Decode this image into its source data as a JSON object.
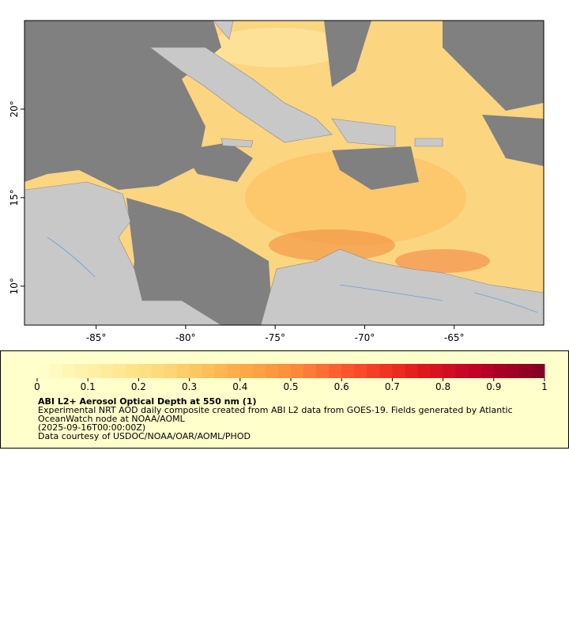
{
  "map": {
    "xlim": [
      -89,
      -60
    ],
    "ylim": [
      7.8,
      25
    ],
    "xticks": [
      {
        "value": -85,
        "label": "-85°"
      },
      {
        "value": -80,
        "label": "-80°"
      },
      {
        "value": -75,
        "label": "-75°"
      },
      {
        "value": -70,
        "label": "-70°"
      },
      {
        "value": -65,
        "label": "-65°"
      }
    ],
    "yticks": [
      {
        "value": 10,
        "label": "10°"
      },
      {
        "value": 15,
        "label": "15°"
      },
      {
        "value": 20,
        "label": "20°"
      }
    ]
  },
  "colorbar": {
    "range": [
      0,
      1
    ],
    "ticks": [
      0,
      0.1,
      0.2,
      0.3,
      0.4,
      0.5,
      0.6,
      0.7,
      0.8,
      0.9,
      1
    ],
    "colors": [
      "#ffffcc",
      "#ffeda0",
      "#fed976",
      "#feb24c",
      "#fd8d3c",
      "#fc4e2a",
      "#e31a1c",
      "#bd0026",
      "#800026"
    ]
  },
  "legend": {
    "title": "ABI L2+ Aerosol Optical Depth at 550 nm (1)",
    "lines": [
      "Experimental NRT AOD daily composite created from ABI L2 data from GOES-19. Fields generated by Atlantic",
      "OceanWatch node at NOAA/AOML",
      "(2025-09-16T00:00:00Z)",
      "Data courtesy of USDOC/NOAA/OAR/AOML/PHOD"
    ]
  }
}
